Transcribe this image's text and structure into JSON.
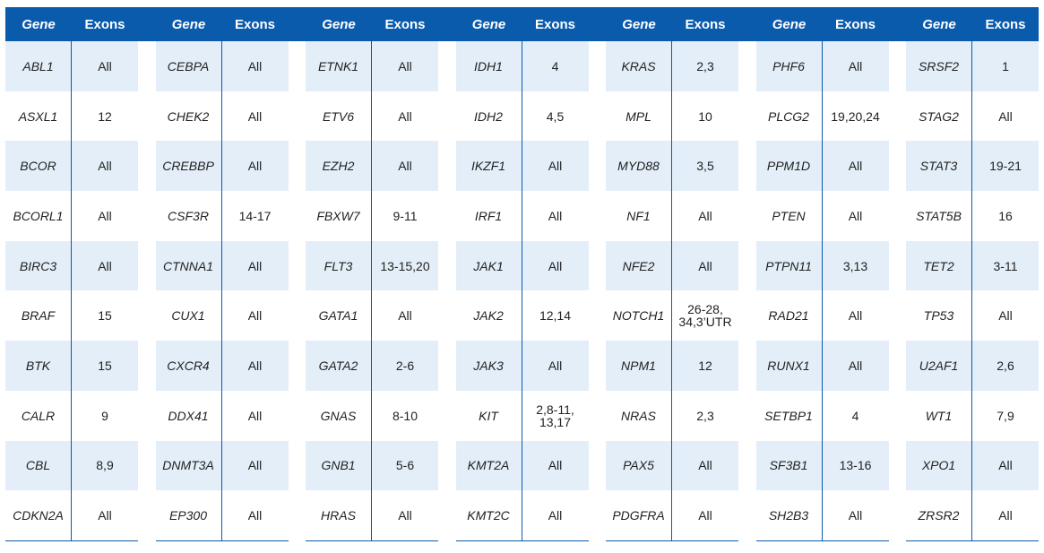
{
  "header": {
    "gene_label": "Gene",
    "exons_label": "Exons"
  },
  "colors": {
    "header_bg": "#0b5bad",
    "shaded_row": "#e3eef8",
    "rule": "#0b5bad"
  },
  "groups": [
    {
      "rows": [
        {
          "gene": "ABL1",
          "exons": "All"
        },
        {
          "gene": "ASXL1",
          "exons": "12"
        },
        {
          "gene": "BCOR",
          "exons": "All"
        },
        {
          "gene": "BCORL1",
          "exons": "All"
        },
        {
          "gene": "BIRC3",
          "exons": "All"
        },
        {
          "gene": "BRAF",
          "exons": "15"
        },
        {
          "gene": "BTK",
          "exons": "15"
        },
        {
          "gene": "CALR",
          "exons": "9"
        },
        {
          "gene": "CBL",
          "exons": "8,9"
        },
        {
          "gene": "CDKN2A",
          "exons": "All"
        }
      ]
    },
    {
      "rows": [
        {
          "gene": "CEBPA",
          "exons": "All"
        },
        {
          "gene": "CHEK2",
          "exons": "All"
        },
        {
          "gene": "CREBBP",
          "exons": "All"
        },
        {
          "gene": "CSF3R",
          "exons": "14-17"
        },
        {
          "gene": "CTNNA1",
          "exons": "All"
        },
        {
          "gene": "CUX1",
          "exons": "All"
        },
        {
          "gene": "CXCR4",
          "exons": "All"
        },
        {
          "gene": "DDX41",
          "exons": "All"
        },
        {
          "gene": "DNMT3A",
          "exons": "All"
        },
        {
          "gene": "EP300",
          "exons": "All"
        }
      ]
    },
    {
      "rows": [
        {
          "gene": "ETNK1",
          "exons": "All"
        },
        {
          "gene": "ETV6",
          "exons": "All"
        },
        {
          "gene": "EZH2",
          "exons": "All"
        },
        {
          "gene": "FBXW7",
          "exons": "9-11"
        },
        {
          "gene": "FLT3",
          "exons": "13-15,20"
        },
        {
          "gene": "GATA1",
          "exons": "All"
        },
        {
          "gene": "GATA2",
          "exons": "2-6"
        },
        {
          "gene": "GNAS",
          "exons": "8-10"
        },
        {
          "gene": "GNB1",
          "exons": "5-6"
        },
        {
          "gene": "HRAS",
          "exons": "All"
        }
      ]
    },
    {
      "rows": [
        {
          "gene": "IDH1",
          "exons": "4"
        },
        {
          "gene": "IDH2",
          "exons": "4,5"
        },
        {
          "gene": "IKZF1",
          "exons": "All"
        },
        {
          "gene": "IRF1",
          "exons": "All"
        },
        {
          "gene": "JAK1",
          "exons": "All"
        },
        {
          "gene": "JAK2",
          "exons": "12,14"
        },
        {
          "gene": "JAK3",
          "exons": "All"
        },
        {
          "gene": "KIT",
          "exons": "2,8-11,\n13,17"
        },
        {
          "gene": "KMT2A",
          "exons": "All"
        },
        {
          "gene": "KMT2C",
          "exons": "All"
        }
      ]
    },
    {
      "rows": [
        {
          "gene": "KRAS",
          "exons": "2,3"
        },
        {
          "gene": "MPL",
          "exons": "10"
        },
        {
          "gene": "MYD88",
          "exons": "3,5"
        },
        {
          "gene": "NF1",
          "exons": "All"
        },
        {
          "gene": "NFE2",
          "exons": "All"
        },
        {
          "gene": "NOTCH1",
          "exons": "26-28,\n34,3’UTR"
        },
        {
          "gene": "NPM1",
          "exons": "12"
        },
        {
          "gene": "NRAS",
          "exons": "2,3"
        },
        {
          "gene": "PAX5",
          "exons": "All"
        },
        {
          "gene": "PDGFRA",
          "exons": "All"
        }
      ]
    },
    {
      "rows": [
        {
          "gene": "PHF6",
          "exons": "All"
        },
        {
          "gene": "PLCG2",
          "exons": "19,20,24"
        },
        {
          "gene": "PPM1D",
          "exons": "All"
        },
        {
          "gene": "PTEN",
          "exons": "All"
        },
        {
          "gene": "PTPN11",
          "exons": "3,13"
        },
        {
          "gene": "RAD21",
          "exons": "All"
        },
        {
          "gene": "RUNX1",
          "exons": "All"
        },
        {
          "gene": "SETBP1",
          "exons": "4"
        },
        {
          "gene": "SF3B1",
          "exons": "13-16"
        },
        {
          "gene": "SH2B3",
          "exons": "All"
        }
      ]
    },
    {
      "rows": [
        {
          "gene": "SRSF2",
          "exons": "1"
        },
        {
          "gene": "STAG2",
          "exons": "All"
        },
        {
          "gene": "STAT3",
          "exons": "19-21"
        },
        {
          "gene": "STAT5B",
          "exons": "16"
        },
        {
          "gene": "TET2",
          "exons": "3-11"
        },
        {
          "gene": "TP53",
          "exons": "All"
        },
        {
          "gene": "U2AF1",
          "exons": "2,6"
        },
        {
          "gene": "WT1",
          "exons": "7,9"
        },
        {
          "gene": "XPO1",
          "exons": "All"
        },
        {
          "gene": "ZRSR2",
          "exons": "All"
        }
      ]
    }
  ]
}
